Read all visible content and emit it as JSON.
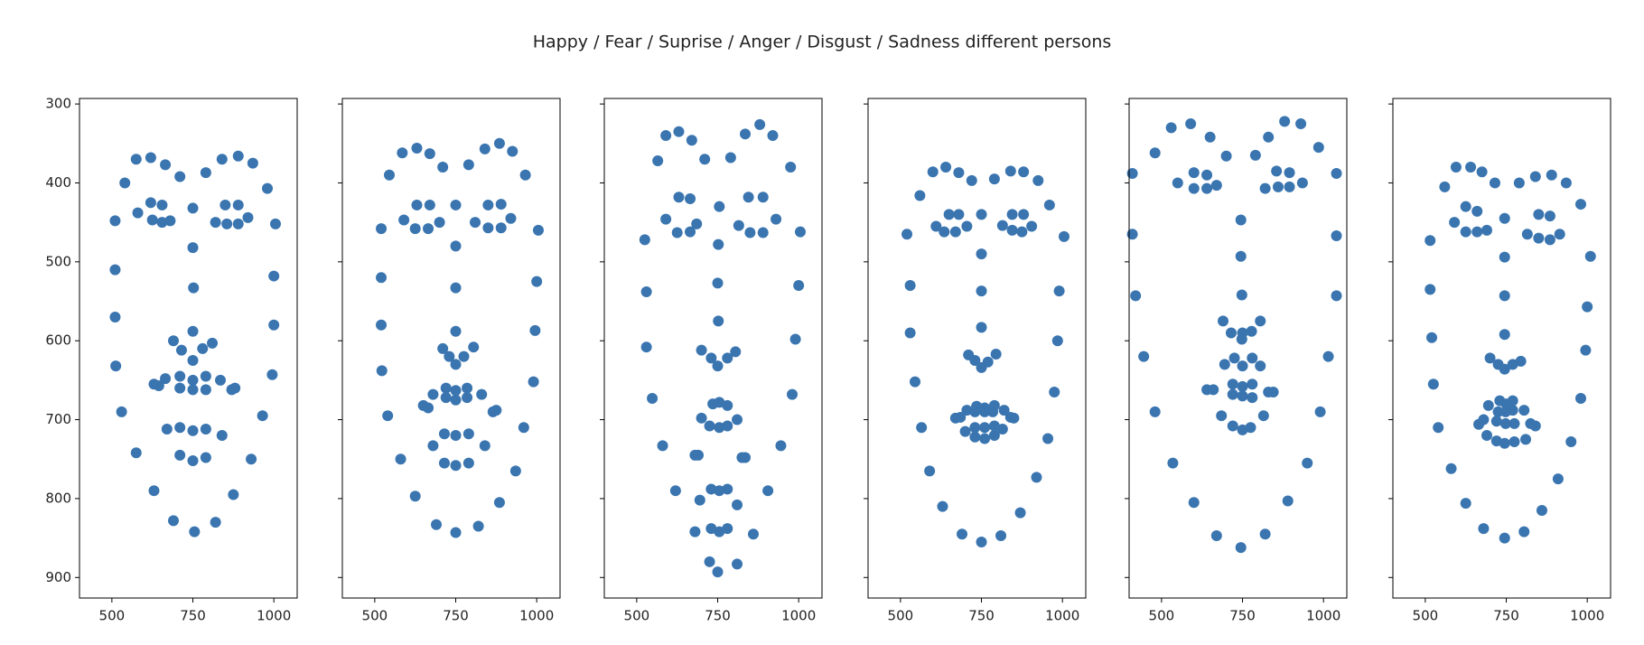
{
  "chart_data": {
    "type": "scatter",
    "title": "Happy / Fear / Suprise / Anger / Disgust / Sadness different persons",
    "color": "#3a75b0",
    "xlim": [
      400,
      1072
    ],
    "ylim": [
      926,
      293
    ],
    "xticks": [
      500,
      750,
      1000
    ],
    "yticks": [
      300,
      400,
      500,
      600,
      700,
      800,
      900
    ],
    "panels": [
      {
        "x": [
          510,
          510,
          510,
          512,
          530,
          575,
          630,
          690,
          755,
          820,
          875,
          930,
          965,
          995,
          1000,
          1000,
          1005,
          540,
          575,
          620,
          665,
          710,
          790,
          840,
          890,
          935,
          980,
          750,
          750,
          752,
          750,
          690,
          715,
          750,
          780,
          810,
          580,
          620,
          655,
          680,
          655,
          625,
          820,
          850,
          890,
          920,
          890,
          855,
          630,
          665,
          710,
          750,
          790,
          835,
          880,
          840,
          790,
          750,
          710,
          670,
          645,
          710,
          750,
          790,
          870,
          790,
          750,
          710
        ],
        "y": [
          448,
          510,
          570,
          632,
          690,
          742,
          790,
          828,
          842,
          830,
          795,
          750,
          695,
          643,
          580,
          518,
          452,
          400,
          370,
          368,
          377,
          392,
          387,
          370,
          366,
          375,
          407,
          432,
          482,
          533,
          588,
          600,
          612,
          625,
          610,
          603,
          438,
          425,
          428,
          448,
          450,
          447,
          450,
          428,
          428,
          444,
          452,
          452,
          655,
          648,
          645,
          650,
          645,
          650,
          660,
          720,
          712,
          714,
          710,
          712,
          657,
          660,
          662,
          662,
          662,
          748,
          752,
          745
        ]
      },
      {
        "x": [
          520,
          520,
          520,
          522,
          540,
          580,
          625,
          690,
          750,
          820,
          885,
          935,
          960,
          990,
          995,
          1000,
          1005,
          545,
          585,
          630,
          670,
          710,
          790,
          840,
          885,
          925,
          965,
          750,
          750,
          750,
          750,
          710,
          730,
          750,
          775,
          805,
          590,
          630,
          670,
          700,
          665,
          625,
          810,
          850,
          890,
          920,
          890,
          850,
          650,
          680,
          720,
          750,
          785,
          830,
          875,
          840,
          790,
          750,
          715,
          680,
          665,
          720,
          750,
          785,
          865,
          790,
          750,
          715
        ],
        "y": [
          458,
          520,
          580,
          638,
          695,
          750,
          797,
          833,
          843,
          835,
          805,
          765,
          710,
          652,
          587,
          525,
          460,
          390,
          362,
          356,
          363,
          380,
          377,
          357,
          350,
          360,
          390,
          428,
          480,
          533,
          588,
          610,
          620,
          630,
          620,
          608,
          447,
          428,
          428,
          450,
          458,
          458,
          450,
          428,
          427,
          445,
          457,
          457,
          682,
          668,
          660,
          663,
          660,
          668,
          688,
          733,
          718,
          720,
          718,
          733,
          685,
          672,
          675,
          672,
          690,
          755,
          758,
          755
        ]
      },
      {
        "x": [
          525,
          530,
          530,
          548,
          580,
          620,
          680,
          725,
          750,
          810,
          860,
          905,
          945,
          980,
          990,
          1000,
          1005,
          565,
          590,
          630,
          670,
          710,
          790,
          835,
          880,
          920,
          975,
          755,
          752,
          750,
          752,
          700,
          730,
          750,
          780,
          805,
          590,
          630,
          665,
          685,
          665,
          625,
          815,
          845,
          890,
          930,
          890,
          850,
          690,
          700,
          735,
          755,
          780,
          810,
          825,
          810,
          780,
          755,
          730,
          695,
          680,
          725,
          755,
          780,
          835,
          780,
          755,
          730
        ],
        "y": [
          472,
          538,
          608,
          673,
          733,
          790,
          842,
          880,
          893,
          883,
          845,
          790,
          733,
          668,
          598,
          530,
          462,
          372,
          340,
          335,
          346,
          370,
          368,
          338,
          326,
          340,
          380,
          430,
          478,
          527,
          575,
          612,
          622,
          632,
          622,
          614,
          446,
          418,
          420,
          452,
          462,
          463,
          454,
          418,
          418,
          446,
          463,
          463,
          745,
          698,
          680,
          678,
          682,
          700,
          748,
          808,
          838,
          842,
          838,
          802,
          745,
          708,
          710,
          708,
          748,
          788,
          790,
          788
        ]
      },
      {
        "x": [
          520,
          530,
          530,
          545,
          565,
          590,
          630,
          690,
          750,
          810,
          870,
          920,
          955,
          975,
          985,
          990,
          1005,
          560,
          600,
          640,
          680,
          720,
          790,
          840,
          880,
          925,
          960,
          750,
          750,
          750,
          750,
          710,
          730,
          750,
          770,
          795,
          610,
          650,
          680,
          705,
          670,
          635,
          815,
          845,
          880,
          905,
          875,
          845,
          670,
          705,
          735,
          760,
          790,
          820,
          850,
          815,
          790,
          760,
          730,
          700,
          685,
          730,
          760,
          785,
          840,
          790,
          760,
          730
        ],
        "y": [
          465,
          530,
          590,
          652,
          710,
          765,
          810,
          845,
          855,
          847,
          818,
          773,
          724,
          665,
          600,
          537,
          468,
          416,
          386,
          380,
          387,
          397,
          395,
          385,
          386,
          397,
          428,
          440,
          490,
          537,
          583,
          618,
          625,
          634,
          627,
          617,
          455,
          440,
          440,
          455,
          462,
          462,
          454,
          440,
          440,
          455,
          462,
          460,
          698,
          688,
          683,
          685,
          682,
          688,
          698,
          712,
          720,
          724,
          722,
          715,
          697,
          690,
          690,
          690,
          697,
          708,
          710,
          710
        ]
      },
      {
        "x": [
          410,
          410,
          420,
          445,
          480,
          535,
          600,
          670,
          745,
          820,
          890,
          950,
          990,
          1015,
          1040,
          1040,
          1040,
          480,
          530,
          590,
          650,
          700,
          790,
          830,
          880,
          930,
          985,
          745,
          745,
          748,
          750,
          690,
          715,
          748,
          778,
          805,
          550,
          600,
          640,
          670,
          640,
          600,
          820,
          855,
          895,
          935,
          895,
          860,
          640,
          695,
          725,
          750,
          780,
          805,
          845,
          815,
          775,
          750,
          720,
          685,
          660,
          720,
          750,
          780,
          830,
          780,
          750,
          720
        ],
        "y": [
          388,
          465,
          543,
          620,
          690,
          755,
          805,
          847,
          862,
          845,
          803,
          755,
          690,
          620,
          543,
          467,
          388,
          362,
          330,
          325,
          342,
          366,
          365,
          342,
          322,
          325,
          355,
          447,
          493,
          542,
          590,
          575,
          590,
          598,
          588,
          575,
          400,
          387,
          390,
          403,
          407,
          407,
          407,
          385,
          387,
          400,
          405,
          405,
          662,
          630,
          622,
          632,
          622,
          632,
          665,
          695,
          710,
          713,
          708,
          695,
          662,
          655,
          658,
          655,
          665,
          672,
          670,
          668
        ]
      },
      {
        "x": [
          515,
          515,
          520,
          525,
          540,
          580,
          625,
          680,
          745,
          805,
          860,
          910,
          950,
          980,
          995,
          1000,
          1010,
          560,
          595,
          640,
          675,
          715,
          790,
          840,
          890,
          935,
          980,
          745,
          745,
          745,
          745,
          700,
          725,
          745,
          770,
          795,
          590,
          625,
          660,
          690,
          660,
          625,
          815,
          850,
          885,
          915,
          885,
          850,
          665,
          695,
          730,
          750,
          770,
          805,
          840,
          810,
          775,
          745,
          720,
          690,
          680,
          725,
          748,
          770,
          825,
          775,
          748,
          720
        ],
        "y": [
          473,
          535,
          596,
          655,
          710,
          762,
          806,
          838,
          850,
          842,
          815,
          775,
          728,
          673,
          612,
          557,
          493,
          405,
          380,
          380,
          386,
          400,
          400,
          392,
          390,
          400,
          427,
          445,
          494,
          543,
          592,
          622,
          630,
          636,
          630,
          626,
          450,
          430,
          436,
          460,
          462,
          462,
          465,
          440,
          442,
          465,
          472,
          470,
          706,
          682,
          676,
          680,
          676,
          688,
          708,
          725,
          728,
          730,
          727,
          720,
          700,
          690,
          690,
          688,
          705,
          705,
          705,
          702
        ]
      }
    ]
  }
}
